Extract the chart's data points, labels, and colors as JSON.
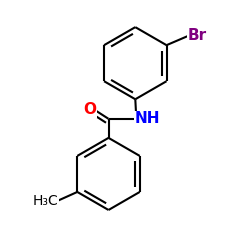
{
  "background": "#ffffff",
  "bond_color": "#000000",
  "bond_width": 1.5,
  "O_color": "#ff0000",
  "N_color": "#0000ff",
  "Br_color": "#800080",
  "C_color": "#000000",
  "font_size": 10,
  "fig_width": 2.5,
  "fig_height": 2.5,
  "dpi": 100,
  "xlim": [
    -1.2,
    2.2
  ],
  "ylim": [
    -2.8,
    2.0
  ]
}
